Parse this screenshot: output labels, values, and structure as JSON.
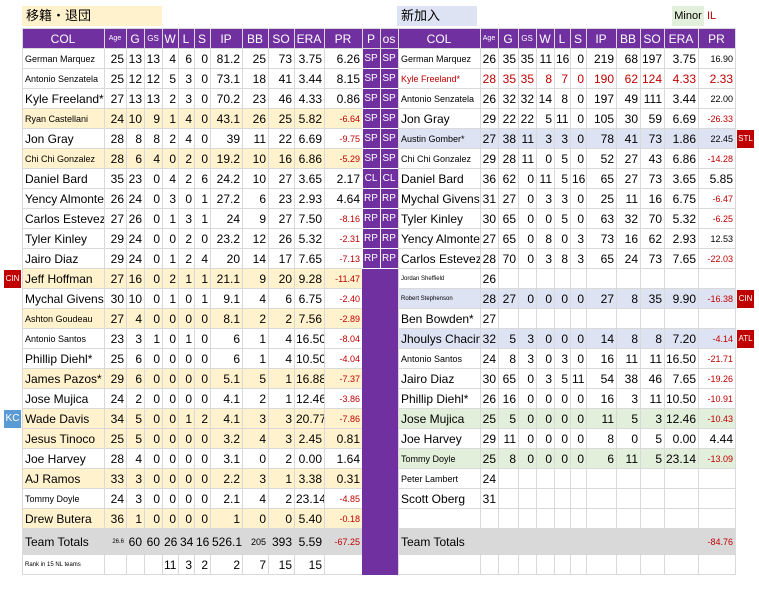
{
  "labels": {
    "left": "移籍・退団",
    "right": "新加入",
    "minor": "Minor",
    "il": "IL"
  },
  "left_headers": [
    "COL",
    "Age",
    "G",
    "GS",
    "W",
    "L",
    "S",
    "IP",
    "BB",
    "SO",
    "ERA",
    "PR"
  ],
  "mid_headers": [
    "P",
    "os"
  ],
  "right_headers": [
    "COL",
    "Age",
    "G",
    "GS",
    "W",
    "L",
    "S",
    "IP",
    "BB",
    "SO",
    "ERA",
    "PR"
  ],
  "left_rows": [
    {
      "name": "German Marquez",
      "age": "25",
      "g": "13",
      "gs": "13",
      "w": "4",
      "l": "6",
      "s": "0",
      "ip": "81.2",
      "bb": "25",
      "so": "73",
      "era": "3.75",
      "pr": "6.26",
      "style": "w",
      "namesmall": true
    },
    {
      "name": "Antonio Senzatela",
      "age": "25",
      "g": "12",
      "gs": "12",
      "w": "5",
      "l": "3",
      "s": "0",
      "ip": "73.1",
      "bb": "18",
      "so": "41",
      "era": "3.44",
      "pr": "8.15",
      "style": "w",
      "namesmall": true
    },
    {
      "name": "Kyle Freeland*",
      "age": "27",
      "g": "13",
      "gs": "13",
      "w": "2",
      "l": "3",
      "s": "0",
      "ip": "70.2",
      "bb": "23",
      "so": "46",
      "era": "4.33",
      "pr": "0.86",
      "style": "w"
    },
    {
      "name": "Ryan Castellani",
      "age": "24",
      "g": "10",
      "gs": "9",
      "w": "1",
      "l": "4",
      "s": "0",
      "ip": "43.1",
      "bb": "26",
      "so": "25",
      "era": "5.82",
      "pr": "-6.64",
      "style": "y",
      "namesmall": true
    },
    {
      "name": "Jon Gray",
      "age": "28",
      "g": "8",
      "gs": "8",
      "w": "2",
      "l": "4",
      "s": "0",
      "ip": "39",
      "bb": "11",
      "so": "22",
      "era": "6.69",
      "pr": "-9.75",
      "style": "w"
    },
    {
      "name": "Chi Chi Gonzalez",
      "age": "28",
      "g": "6",
      "gs": "4",
      "w": "0",
      "l": "2",
      "s": "0",
      "ip": "19.2",
      "bb": "10",
      "so": "16",
      "era": "6.86",
      "pr": "-5.29",
      "style": "y",
      "namesmall": true
    },
    {
      "name": "Daniel Bard",
      "age": "35",
      "g": "23",
      "gs": "0",
      "w": "4",
      "l": "2",
      "s": "6",
      "ip": "24.2",
      "bb": "10",
      "so": "27",
      "era": "3.65",
      "pr": "2.17",
      "style": "w"
    },
    {
      "name": "Yency Almonte",
      "age": "26",
      "g": "24",
      "gs": "0",
      "w": "3",
      "l": "0",
      "s": "1",
      "ip": "27.2",
      "bb": "6",
      "so": "23",
      "era": "2.93",
      "pr": "4.64",
      "style": "w"
    },
    {
      "name": "Carlos Estevez",
      "age": "27",
      "g": "26",
      "gs": "0",
      "w": "1",
      "l": "3",
      "s": "1",
      "ip": "24",
      "bb": "9",
      "so": "27",
      "era": "7.50",
      "pr": "-8.16",
      "style": "w"
    },
    {
      "name": "Tyler Kinley",
      "age": "29",
      "g": "24",
      "gs": "0",
      "w": "0",
      "l": "2",
      "s": "0",
      "ip": "23.2",
      "bb": "12",
      "so": "26",
      "era": "5.32",
      "pr": "-2.31",
      "style": "w"
    },
    {
      "name": "Jairo Diaz",
      "age": "29",
      "g": "24",
      "gs": "0",
      "w": "1",
      "l": "2",
      "s": "4",
      "ip": "20",
      "bb": "14",
      "so": "17",
      "era": "7.65",
      "pr": "-7.13",
      "style": "w"
    },
    {
      "name": "Jeff Hoffman",
      "age": "27",
      "g": "16",
      "gs": "0",
      "w": "2",
      "l": "1",
      "s": "1",
      "ip": "21.1",
      "bb": "9",
      "so": "20",
      "era": "9.28",
      "pr": "-11.47",
      "style": "y"
    },
    {
      "name": "Mychal Givens",
      "age": "30",
      "g": "10",
      "gs": "0",
      "w": "1",
      "l": "0",
      "s": "1",
      "ip": "9.1",
      "bb": "4",
      "so": "6",
      "era": "6.75",
      "pr": "-2.40",
      "style": "w"
    },
    {
      "name": "Ashton Goudeau",
      "age": "27",
      "g": "4",
      "gs": "0",
      "w": "0",
      "l": "0",
      "s": "0",
      "ip": "8.1",
      "bb": "2",
      "so": "2",
      "era": "7.56",
      "pr": "-2.89",
      "style": "y",
      "namesmall": true
    },
    {
      "name": "Antonio Santos",
      "age": "23",
      "g": "3",
      "gs": "1",
      "w": "0",
      "l": "1",
      "s": "0",
      "ip": "6",
      "bb": "1",
      "so": "4",
      "era": "16.50",
      "pr": "-8.04",
      "style": "w",
      "namesmall": true
    },
    {
      "name": "Phillip Diehl*",
      "age": "25",
      "g": "6",
      "gs": "0",
      "w": "0",
      "l": "0",
      "s": "0",
      "ip": "6",
      "bb": "1",
      "so": "4",
      "era": "10.50",
      "pr": "-4.04",
      "style": "w"
    },
    {
      "name": "James Pazos*",
      "age": "29",
      "g": "6",
      "gs": "0",
      "w": "0",
      "l": "0",
      "s": "0",
      "ip": "5.1",
      "bb": "5",
      "so": "1",
      "era": "16.88",
      "pr": "-7.37",
      "style": "y"
    },
    {
      "name": "Jose Mujica",
      "age": "24",
      "g": "2",
      "gs": "0",
      "w": "0",
      "l": "0",
      "s": "0",
      "ip": "4.1",
      "bb": "2",
      "so": "1",
      "era": "12.46",
      "pr": "-3.86",
      "style": "w"
    },
    {
      "name": "Wade Davis",
      "age": "34",
      "g": "5",
      "gs": "0",
      "w": "0",
      "l": "1",
      "s": "2",
      "ip": "4.1",
      "bb": "3",
      "so": "3",
      "era": "20.77",
      "pr": "-7.86",
      "style": "y"
    },
    {
      "name": "Jesus Tinoco",
      "age": "25",
      "g": "5",
      "gs": "0",
      "w": "0",
      "l": "0",
      "s": "0",
      "ip": "3.2",
      "bb": "4",
      "so": "3",
      "era": "2.45",
      "pr": "0.81",
      "style": "y"
    },
    {
      "name": "Joe Harvey",
      "age": "28",
      "g": "4",
      "gs": "0",
      "w": "0",
      "l": "0",
      "s": "0",
      "ip": "3.1",
      "bb": "0",
      "so": "2",
      "era": "0.00",
      "pr": "1.64",
      "style": "w"
    },
    {
      "name": "AJ Ramos",
      "age": "33",
      "g": "3",
      "gs": "0",
      "w": "0",
      "l": "0",
      "s": "0",
      "ip": "2.2",
      "bb": "3",
      "so": "1",
      "era": "3.38",
      "pr": "0.31",
      "style": "y"
    },
    {
      "name": "Tommy Doyle",
      "age": "24",
      "g": "3",
      "gs": "0",
      "w": "0",
      "l": "0",
      "s": "0",
      "ip": "2.1",
      "bb": "4",
      "so": "2",
      "era": "23.14",
      "pr": "-4.85",
      "style": "w",
      "namesmall": true
    },
    {
      "name": "Drew Butera",
      "age": "36",
      "g": "1",
      "gs": "0",
      "w": "0",
      "l": "0",
      "s": "0",
      "ip": "1",
      "bb": "0",
      "so": "0",
      "era": "5.40",
      "pr": "-0.18",
      "style": "y"
    }
  ],
  "left_totals": {
    "name": "Team Totals",
    "age": "26.6",
    "g": "60",
    "gs": "60",
    "w": "26",
    "l": "34",
    "s": "16",
    "ip": "526.1",
    "bb": "205",
    "so": "393",
    "era": "5.59",
    "pr": "-67.25"
  },
  "left_rank": {
    "name": "Rank in 15 NL teams",
    "age": "",
    "g": "",
    "gs": "",
    "w": "11",
    "l": "3",
    "s": "2",
    "ip": "2",
    "bb": "7",
    "so": "15",
    "era": "15",
    "pr": ""
  },
  "mid_rows": [
    [
      "SP",
      "SP"
    ],
    [
      "SP",
      "SP"
    ],
    [
      "SP",
      "SP"
    ],
    [
      "SP",
      "SP"
    ],
    [
      "SP",
      "SP"
    ],
    [
      "SP",
      "SP"
    ],
    [
      "CL",
      "CL"
    ],
    [
      "RP",
      "RP"
    ],
    [
      "RP",
      "RP"
    ],
    [
      "RP",
      "RP"
    ],
    [
      "RP",
      "RP"
    ],
    [
      "",
      ""
    ],
    [
      "",
      ""
    ],
    [
      "",
      ""
    ],
    [
      "",
      ""
    ],
    [
      "",
      ""
    ],
    [
      "",
      ""
    ],
    [
      "",
      ""
    ],
    [
      "",
      ""
    ],
    [
      "",
      ""
    ],
    [
      "",
      ""
    ],
    [
      "",
      ""
    ],
    [
      "",
      ""
    ],
    [
      "",
      ""
    ],
    [
      "",
      ""
    ],
    [
      "",
      ""
    ]
  ],
  "right_rows": [
    {
      "name": "German Marquez",
      "age": "26",
      "g": "35",
      "gs": "35",
      "w": "11",
      "l": "16",
      "s": "0",
      "ip": "219",
      "bb": "68",
      "so": "197",
      "era": "3.75",
      "pr": "16.90",
      "style": "w",
      "namesmall": true
    },
    {
      "name": "Kyle Freeland*",
      "age": "28",
      "g": "35",
      "gs": "35",
      "w": "8",
      "l": "7",
      "s": "0",
      "ip": "190",
      "bb": "62",
      "so": "124",
      "era": "4.33",
      "pr": "2.33",
      "style": "w",
      "red": true,
      "namesmall": true
    },
    {
      "name": "Antonio Senzatela",
      "age": "26",
      "g": "32",
      "gs": "32",
      "w": "14",
      "l": "8",
      "s": "0",
      "ip": "197",
      "bb": "49",
      "so": "111",
      "era": "3.44",
      "pr": "22.00",
      "style": "w",
      "namesmall": true
    },
    {
      "name": "Jon Gray",
      "age": "29",
      "g": "22",
      "gs": "22",
      "w": "5",
      "l": "11",
      "s": "0",
      "ip": "105",
      "bb": "30",
      "so": "59",
      "era": "6.69",
      "pr": "-26.33",
      "style": "w"
    },
    {
      "name": "Austin Gomber*",
      "age": "27",
      "g": "38",
      "gs": "11",
      "w": "3",
      "l": "3",
      "s": "0",
      "ip": "78",
      "bb": "41",
      "so": "73",
      "era": "1.86",
      "pr": "22.45",
      "style": "b",
      "namesmall": true
    },
    {
      "name": "Chi Chi Gonzalez",
      "age": "29",
      "g": "28",
      "gs": "11",
      "w": "0",
      "l": "5",
      "s": "0",
      "ip": "52",
      "bb": "27",
      "so": "43",
      "era": "6.86",
      "pr": "-14.28",
      "style": "w",
      "namesmall": true
    },
    {
      "name": "Daniel Bard",
      "age": "36",
      "g": "62",
      "gs": "0",
      "w": "11",
      "l": "5",
      "s": "16",
      "ip": "65",
      "bb": "27",
      "so": "73",
      "era": "3.65",
      "pr": "5.85",
      "style": "w"
    },
    {
      "name": "Mychal Givens",
      "age": "31",
      "g": "27",
      "gs": "0",
      "w": "3",
      "l": "3",
      "s": "0",
      "ip": "25",
      "bb": "11",
      "so": "16",
      "era": "6.75",
      "pr": "-6.47",
      "style": "w"
    },
    {
      "name": "Tyler Kinley",
      "age": "30",
      "g": "65",
      "gs": "0",
      "w": "0",
      "l": "5",
      "s": "0",
      "ip": "63",
      "bb": "32",
      "so": "70",
      "era": "5.32",
      "pr": "-6.25",
      "style": "w"
    },
    {
      "name": "Yency Almonte",
      "age": "27",
      "g": "65",
      "gs": "0",
      "w": "8",
      "l": "0",
      "s": "3",
      "ip": "73",
      "bb": "16",
      "so": "62",
      "era": "2.93",
      "pr": "12.53",
      "style": "w"
    },
    {
      "name": "Carlos Estevez",
      "age": "28",
      "g": "70",
      "gs": "0",
      "w": "3",
      "l": "8",
      "s": "3",
      "ip": "65",
      "bb": "24",
      "so": "73",
      "era": "7.65",
      "pr": "-22.03",
      "style": "w"
    },
    {
      "name": "Jordan Sheffield",
      "age": "26",
      "g": "",
      "gs": "",
      "w": "",
      "l": "",
      "s": "",
      "ip": "",
      "bb": "",
      "so": "",
      "era": "",
      "pr": "",
      "style": "w",
      "namexs": true
    },
    {
      "name": "Robert Stephenson",
      "age": "28",
      "g": "27",
      "gs": "0",
      "w": "0",
      "l": "0",
      "s": "0",
      "ip": "27",
      "bb": "8",
      "so": "35",
      "era": "9.90",
      "pr": "-16.38",
      "style": "b",
      "namexs": true
    },
    {
      "name": "Ben Bowden*",
      "age": "27",
      "g": "",
      "gs": "",
      "w": "",
      "l": "",
      "s": "",
      "ip": "",
      "bb": "",
      "so": "",
      "era": "",
      "pr": "",
      "style": "w"
    },
    {
      "name": "Jhoulys Chacin",
      "age": "32",
      "g": "5",
      "gs": "3",
      "w": "0",
      "l": "0",
      "s": "0",
      "ip": "14",
      "bb": "8",
      "so": "8",
      "era": "7.20",
      "pr": "-4.14",
      "style": "b"
    },
    {
      "name": "Antonio Santos",
      "age": "24",
      "g": "8",
      "gs": "3",
      "w": "0",
      "l": "3",
      "s": "0",
      "ip": "16",
      "bb": "11",
      "so": "11",
      "era": "16.50",
      "pr": "-21.71",
      "style": "w",
      "namesmall": true
    },
    {
      "name": "Jairo Diaz",
      "age": "30",
      "g": "65",
      "gs": "0",
      "w": "3",
      "l": "5",
      "s": "11",
      "ip": "54",
      "bb": "38",
      "so": "46",
      "era": "7.65",
      "pr": "-19.26",
      "style": "w"
    },
    {
      "name": "Phillip Diehl*",
      "age": "26",
      "g": "16",
      "gs": "0",
      "w": "0",
      "l": "0",
      "s": "0",
      "ip": "16",
      "bb": "3",
      "so": "11",
      "era": "10.50",
      "pr": "-10.91",
      "style": "w"
    },
    {
      "name": "Jose Mujica",
      "age": "25",
      "g": "5",
      "gs": "0",
      "w": "0",
      "l": "0",
      "s": "0",
      "ip": "11",
      "bb": "5",
      "so": "3",
      "era": "12.46",
      "pr": "-10.43",
      "style": "g"
    },
    {
      "name": "Joe Harvey",
      "age": "29",
      "g": "11",
      "gs": "0",
      "w": "0",
      "l": "0",
      "s": "0",
      "ip": "8",
      "bb": "0",
      "so": "5",
      "era": "0.00",
      "pr": "4.44",
      "style": "w"
    },
    {
      "name": "Tommy Doyle",
      "age": "25",
      "g": "8",
      "gs": "0",
      "w": "0",
      "l": "0",
      "s": "0",
      "ip": "6",
      "bb": "11",
      "so": "5",
      "era": "23.14",
      "pr": "-13.09",
      "style": "g",
      "namesmall": true
    },
    {
      "name": "Peter Lambert",
      "age": "24",
      "g": "",
      "gs": "",
      "w": "",
      "l": "",
      "s": "",
      "ip": "",
      "bb": "",
      "so": "",
      "era": "",
      "pr": "",
      "style": "w",
      "namesmall": true
    },
    {
      "name": "Scott Oberg",
      "age": "31",
      "g": "",
      "gs": "",
      "w": "",
      "l": "",
      "s": "",
      "ip": "",
      "bb": "",
      "so": "",
      "era": "",
      "pr": "",
      "style": "w"
    },
    {
      "name": "",
      "age": "",
      "g": "",
      "gs": "",
      "w": "",
      "l": "",
      "s": "",
      "ip": "",
      "bb": "",
      "so": "",
      "era": "",
      "pr": "",
      "style": "w"
    }
  ],
  "right_totals": {
    "name": "Team Totals",
    "age": "",
    "g": "",
    "gs": "",
    "w": "",
    "l": "",
    "s": "",
    "ip": "",
    "bb": "",
    "so": "",
    "era": "",
    "pr": "-84.76"
  },
  "right_rank": {
    "name": "",
    "age": "",
    "g": "",
    "gs": "",
    "w": "",
    "l": "",
    "s": "",
    "ip": "",
    "bb": "",
    "so": "",
    "era": "",
    "pr": ""
  },
  "side_tags": {
    "left": [
      {
        "row": 11,
        "text": "CIN",
        "color": "red"
      },
      {
        "row": 18,
        "text": "KC",
        "color": "blue"
      }
    ],
    "right": [
      {
        "row": 4,
        "text": "STL",
        "color": "red"
      },
      {
        "row": 12,
        "text": "CIN",
        "color": "red"
      },
      {
        "row": 14,
        "text": "ATL",
        "color": "red"
      }
    ]
  }
}
